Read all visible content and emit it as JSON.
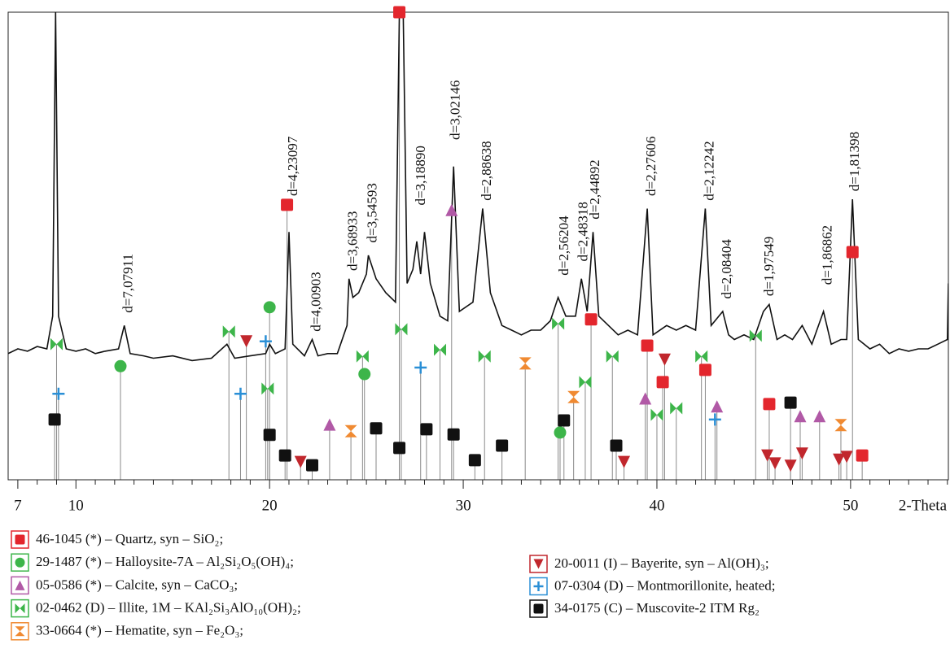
{
  "chart_data": {
    "type": "xrd",
    "x_label": "2-Theta",
    "xlim": [
      6.5,
      55.05
    ],
    "ylim": [
      0,
      100
    ],
    "xticks": [
      7,
      10,
      20,
      30,
      40,
      50
    ],
    "minor_xticks": [
      8,
      9,
      11,
      12,
      13,
      14,
      15,
      16,
      17,
      18,
      19,
      21,
      22,
      23,
      24,
      25,
      26,
      27,
      28,
      29,
      31,
      32,
      33,
      34,
      35,
      36,
      37,
      38,
      39,
      41,
      42,
      43,
      44,
      45,
      46,
      47,
      48,
      49,
      51,
      52,
      53,
      54,
      55
    ],
    "pattern": {
      "color": "#111111",
      "x": [
        6.5,
        7.0,
        7.5,
        8.0,
        8.5,
        8.8,
        8.95,
        9.1,
        9.5,
        10.0,
        10.5,
        11.0,
        11.5,
        12.2,
        12.5,
        12.8,
        13.5,
        14.0,
        15.0,
        16.0,
        17.0,
        17.8,
        18.2,
        19.0,
        19.8,
        20.0,
        20.3,
        20.8,
        21.0,
        21.2,
        21.8,
        22.2,
        22.5,
        23.0,
        23.5,
        24.0,
        24.1,
        24.3,
        24.6,
        25.0,
        25.1,
        25.5,
        26.0,
        26.5,
        26.7,
        26.9,
        27.1,
        27.4,
        27.6,
        27.8,
        28.0,
        28.3,
        28.8,
        29.2,
        29.5,
        29.8,
        30.5,
        31.0,
        31.4,
        32.0,
        32.5,
        33.0,
        33.5,
        34.0,
        34.5,
        34.9,
        35.3,
        35.8,
        36.1,
        36.4,
        36.7,
        37.0,
        37.5,
        38.0,
        38.5,
        39.0,
        39.5,
        39.8,
        40.5,
        41.0,
        41.5,
        42.0,
        42.5,
        42.8,
        43.4,
        43.7,
        44.0,
        44.5,
        45.0,
        45.5,
        45.8,
        46.2,
        46.6,
        47.0,
        47.5,
        48.0,
        48.6,
        49.0,
        49.5,
        49.8,
        50.1,
        50.4,
        51.0,
        51.5,
        52.0,
        52.5,
        53.0,
        53.5,
        54.0,
        54.5,
        55.0,
        55.05
      ],
      "values": [
        27,
        28,
        27.5,
        28.5,
        28,
        35,
        100,
        35,
        28,
        27.5,
        28,
        27,
        27.5,
        28,
        33,
        27,
        26.5,
        26,
        26.5,
        25.5,
        26,
        29,
        26,
        26.5,
        27,
        29,
        27,
        28,
        53,
        29,
        26.5,
        30,
        26.5,
        27,
        27,
        33,
        43,
        39,
        40,
        44,
        48,
        43,
        40,
        38,
        100,
        100,
        42,
        45,
        51,
        44,
        53,
        42,
        35,
        34,
        67,
        36,
        38,
        58,
        40,
        33,
        32,
        31,
        32,
        32,
        34,
        39,
        35,
        35,
        43,
        36,
        53,
        35,
        33,
        31,
        32,
        31,
        58,
        31,
        33,
        32,
        33,
        32,
        58,
        33,
        36,
        31,
        30,
        31,
        30,
        36,
        37.5,
        30,
        31,
        30,
        33,
        29,
        36,
        29,
        30,
        30,
        60,
        30,
        28,
        29,
        27,
        28,
        27.5,
        28,
        28,
        29,
        30,
        42
      ]
    },
    "annotations": [
      {
        "text": "d=7,07911",
        "x": 12.5,
        "y": 35
      },
      {
        "text": "d=4,23097",
        "x": 21.0,
        "y": 60
      },
      {
        "text": "d=4,00903",
        "x": 22.2,
        "y": 31
      },
      {
        "text": "d=3,68933",
        "x": 24.1,
        "y": 44
      },
      {
        "text": "d=3,54593",
        "x": 25.1,
        "y": 50
      },
      {
        "text": "d=3,18890",
        "x": 27.6,
        "y": 58
      },
      {
        "text": "d=3,02146",
        "x": 29.4,
        "y": 72
      },
      {
        "text": "d=2,88638",
        "x": 31.0,
        "y": 59
      },
      {
        "text": "d=2,56204",
        "x": 35.0,
        "y": 43
      },
      {
        "text": "d=2,48318",
        "x": 36.0,
        "y": 46
      },
      {
        "text": "d=2,44892",
        "x": 36.6,
        "y": 55
      },
      {
        "text": "d=2,27606",
        "x": 39.5,
        "y": 60
      },
      {
        "text": "d=2,12242",
        "x": 42.5,
        "y": 59
      },
      {
        "text": "d=2,08404",
        "x": 43.4,
        "y": 38
      },
      {
        "text": "d=1,97549",
        "x": 45.6,
        "y": 38.6
      },
      {
        "text": "d=1,86862",
        "x": 48.6,
        "y": 41
      },
      {
        "text": "d=1,81398",
        "x": 50.0,
        "y": 61
      }
    ],
    "series": [
      {
        "name": "46-1045 (*) – Quartz, syn – SiO₂;",
        "symbol": "square",
        "color": "#e3262d",
        "x": [
          20.9,
          26.7,
          36.6,
          39.5,
          40.3,
          42.5,
          45.8,
          50.1,
          50.6
        ],
        "values": [
          58.8,
          100,
          34.3,
          28.7,
          20.9,
          23.5,
          16.2,
          48.7,
          5.2
        ]
      },
      {
        "name": "29-1487 (*) – Halloysite-7A – Al₂Si₂O₅(OH)₄;",
        "symbol": "circle",
        "color": "#3db54a",
        "x": [
          12.3,
          20.0,
          24.9,
          35.0
        ],
        "values": [
          24.3,
          36.9,
          22.6,
          10.1
        ]
      },
      {
        "name": "05-0586 (*) – Calcite, syn – CaCO₃;",
        "symbol": "triangle",
        "color": "#b159a6",
        "x": [
          23.1,
          29.4,
          39.4,
          43.1,
          47.4,
          48.4
        ],
        "values": [
          11.8,
          57.7,
          17.4,
          15.7,
          13.6,
          13.6
        ]
      },
      {
        "name": "02-0462 (D) – Illite, 1M – KAl₂Si₃AlO₁₀(OH)₂;",
        "symbol": "bowtie",
        "color": "#3db54a",
        "x": [
          9.0,
          17.9,
          19.9,
          24.8,
          26.8,
          28.8,
          31.1,
          34.9,
          36.3,
          37.7,
          40.0,
          41.0,
          42.3,
          45.1
        ],
        "values": [
          29,
          31.7,
          19.5,
          26.4,
          32.2,
          27.8,
          26.4,
          33.4,
          20.9,
          26.4,
          13.9,
          15.3,
          26.4,
          30.8
        ]
      },
      {
        "name": "33-0664 (*) – Hematite, syn – Fe₂O₃;",
        "symbol": "hourglass",
        "color": "#f08a32",
        "x": [
          24.2,
          33.2,
          35.7,
          49.5
        ],
        "values": [
          10.4,
          24.9,
          17.7,
          11.7
        ]
      },
      {
        "name": "20-0011 (I) – Bayerite, syn – Al(OH)₃;",
        "symbol": "triangle-down",
        "color": "#c1272d",
        "x": [
          18.8,
          21.6,
          38.3,
          40.4,
          45.7,
          46.1,
          46.9,
          47.5,
          49.4,
          49.8
        ],
        "values": [
          29.6,
          3.8,
          3.8,
          25.7,
          5.2,
          3.5,
          3,
          5.6,
          4.3,
          4.9
        ]
      },
      {
        "name": "07-0304 (D) – Montmorillonite, heated;",
        "symbol": "plus",
        "color": "#2a8fd6",
        "x": [
          9.1,
          18.5,
          19.8,
          27.8,
          43.0
        ],
        "values": [
          18.4,
          18.4,
          29.6,
          24,
          12.9
        ]
      },
      {
        "name": "34-0175 (C) – Muscovite-2 ITM Rg₂",
        "symbol": "square",
        "color": "#111111",
        "x": [
          8.9,
          20.0,
          20.8,
          22.2,
          25.5,
          26.7,
          28.1,
          29.5,
          30.6,
          32.0,
          35.2,
          37.9,
          46.9
        ],
        "values": [
          12.9,
          9.6,
          5.2,
          3.1,
          11,
          6.8,
          10.8,
          9.7,
          4.2,
          7.3,
          12.7,
          7.3,
          16.5
        ]
      }
    ]
  }
}
